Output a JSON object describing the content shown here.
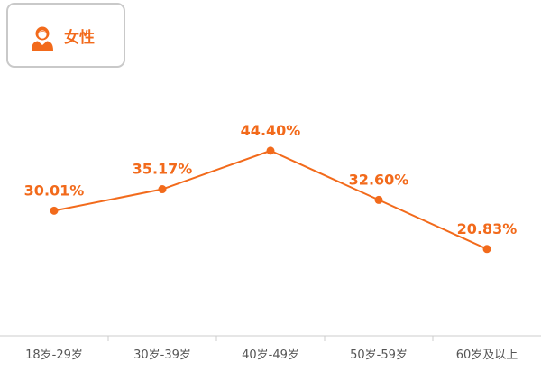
{
  "legend": {
    "label": "女性",
    "icon": "female-user-icon"
  },
  "colors": {
    "accent": "#f26a1b",
    "axis": "#cccccc",
    "tick_text": "#555555"
  },
  "chart_data": {
    "type": "line",
    "title": "",
    "xlabel": "",
    "ylabel": "",
    "categories": [
      "18岁-29岁",
      "30岁-39岁",
      "40岁-49岁",
      "50岁-59岁",
      "60岁及以上"
    ],
    "series": [
      {
        "name": "女性",
        "values": [
          30.01,
          35.17,
          44.4,
          32.6,
          20.83
        ],
        "labels": [
          "30.01%",
          "35.17%",
          "44.40%",
          "32.60%",
          "20.83%"
        ]
      }
    ],
    "ylim": [
      0,
      70
    ],
    "grid": false,
    "legend_position": "top-left"
  }
}
